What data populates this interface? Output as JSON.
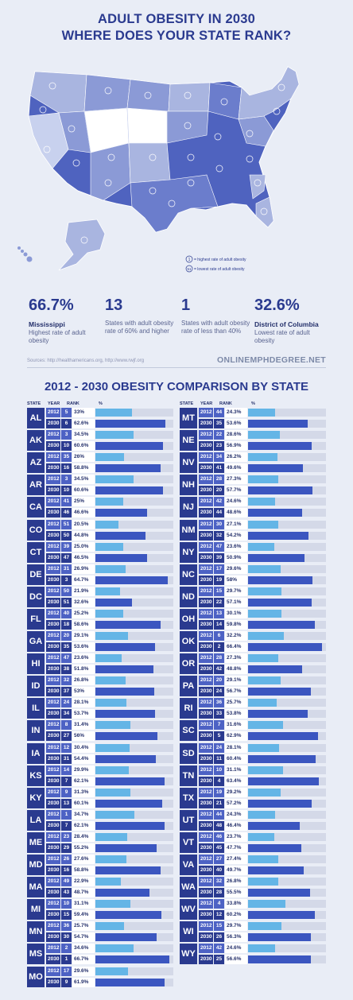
{
  "header": {
    "title_line1": "ADULT OBESITY IN 2030",
    "title_line2": "WHERE DOES YOUR STATE RANK?"
  },
  "map": {
    "legend_1": "= highest rate of adult obesity",
    "legend_51": "= lowest rate of adult obesity",
    "legend_1_num": "1",
    "legend_51_num": "51"
  },
  "stats": [
    {
      "big": "66.7%",
      "bold": "Mississippi",
      "desc": "Highest rate of adult obesity"
    },
    {
      "big": "13",
      "bold": "",
      "desc": "States with adult obesity rate of 60% and higher"
    },
    {
      "big": "1",
      "bold": "",
      "desc": "States with adult obesity rate of less than 40%"
    },
    {
      "big": "32.6%",
      "bold": "District of Columbia",
      "desc": "Lowest rate of adult obesity"
    }
  ],
  "sources": "Sources: http://healthamericans.org, http://www.rwjf.org",
  "site": "ONLINEMPHDEGREE.NET",
  "comparison": {
    "title": "2012 - 2030 OBESITY COMPARISON BY STATE",
    "headers": {
      "state": "STATE",
      "year": "YEAR",
      "rank": "RANK",
      "pct": "%"
    }
  },
  "chart_data": {
    "type": "bar",
    "title": "2012 - 2030 OBESITY COMPARISON BY STATE",
    "series": [
      {
        "name": "2012",
        "values": []
      },
      {
        "name": "2030",
        "values": []
      }
    ],
    "states": [
      {
        "code": "AL",
        "y2012": {
          "year": "2012",
          "rank": "5",
          "pct": "33%",
          "value": 33.0
        },
        "y2030": {
          "year": "2030",
          "rank": "6",
          "pct": "62.6%",
          "value": 62.6
        }
      },
      {
        "code": "AK",
        "y2012": {
          "year": "2012",
          "rank": "3",
          "pct": "34.5%",
          "value": 34.5
        },
        "y2030": {
          "year": "2030",
          "rank": "10",
          "pct": "60.6%",
          "value": 60.6
        }
      },
      {
        "code": "AZ",
        "y2012": {
          "year": "2012",
          "rank": "35",
          "pct": "26%",
          "value": 26.0
        },
        "y2030": {
          "year": "2030",
          "rank": "16",
          "pct": "58.8%",
          "value": 58.8
        }
      },
      {
        "code": "AR",
        "y2012": {
          "year": "2012",
          "rank": "3",
          "pct": "34.5%",
          "value": 34.5
        },
        "y2030": {
          "year": "2030",
          "rank": "10",
          "pct": "60.6%",
          "value": 60.6
        }
      },
      {
        "code": "CA",
        "y2012": {
          "year": "2012",
          "rank": "41",
          "pct": "25%",
          "value": 25.0
        },
        "y2030": {
          "year": "2030",
          "rank": "46",
          "pct": "46.6%",
          "value": 46.6
        }
      },
      {
        "code": "CO",
        "y2012": {
          "year": "2012",
          "rank": "51",
          "pct": "20.5%",
          "value": 20.5
        },
        "y2030": {
          "year": "2030",
          "rank": "50",
          "pct": "44.8%",
          "value": 44.8
        }
      },
      {
        "code": "CT",
        "y2012": {
          "year": "2012",
          "rank": "39",
          "pct": "25.0%",
          "value": 25.0
        },
        "y2030": {
          "year": "2030",
          "rank": "47",
          "pct": "46.5%",
          "value": 46.5
        }
      },
      {
        "code": "DE",
        "y2012": {
          "year": "2012",
          "rank": "31",
          "pct": "26.9%",
          "value": 26.9
        },
        "y2030": {
          "year": "2030",
          "rank": "3",
          "pct": "64.7%",
          "value": 64.7
        }
      },
      {
        "code": "DC",
        "y2012": {
          "year": "2012",
          "rank": "50",
          "pct": "21.9%",
          "value": 21.9
        },
        "y2030": {
          "year": "2030",
          "rank": "51",
          "pct": "32.6%",
          "value": 32.6
        }
      },
      {
        "code": "FL",
        "y2012": {
          "year": "2012",
          "rank": "40",
          "pct": "25.2%",
          "value": 25.2
        },
        "y2030": {
          "year": "2030",
          "rank": "18",
          "pct": "58.6%",
          "value": 58.6
        }
      },
      {
        "code": "GA",
        "y2012": {
          "year": "2012",
          "rank": "20",
          "pct": "29.1%",
          "value": 29.1
        },
        "y2030": {
          "year": "2030",
          "rank": "35",
          "pct": "53.6%",
          "value": 53.6
        }
      },
      {
        "code": "HI",
        "y2012": {
          "year": "2012",
          "rank": "47",
          "pct": "23.6%",
          "value": 23.6
        },
        "y2030": {
          "year": "2030",
          "rank": "38",
          "pct": "51.8%",
          "value": 51.8
        }
      },
      {
        "code": "ID",
        "y2012": {
          "year": "2012",
          "rank": "32",
          "pct": "26.8%",
          "value": 26.8
        },
        "y2030": {
          "year": "2030",
          "rank": "37",
          "pct": "53%",
          "value": 53.0
        }
      },
      {
        "code": "IL",
        "y2012": {
          "year": "2012",
          "rank": "24",
          "pct": "28.1%",
          "value": 28.1
        },
        "y2030": {
          "year": "2030",
          "rank": "34",
          "pct": "53.7%",
          "value": 53.7
        }
      },
      {
        "code": "IN",
        "y2012": {
          "year": "2012",
          "rank": "8",
          "pct": "31.4%",
          "value": 31.4
        },
        "y2030": {
          "year": "2030",
          "rank": "27",
          "pct": "56%",
          "value": 56.0
        }
      },
      {
        "code": "IA",
        "y2012": {
          "year": "2012",
          "rank": "12",
          "pct": "30.4%",
          "value": 30.4
        },
        "y2030": {
          "year": "2030",
          "rank": "31",
          "pct": "54.4%",
          "value": 54.4
        }
      },
      {
        "code": "KS",
        "y2012": {
          "year": "2012",
          "rank": "14",
          "pct": "29.9%",
          "value": 29.9
        },
        "y2030": {
          "year": "2030",
          "rank": "7",
          "pct": "62.1%",
          "value": 62.1
        }
      },
      {
        "code": "KY",
        "y2012": {
          "year": "2012",
          "rank": "9",
          "pct": "31.3%",
          "value": 31.3
        },
        "y2030": {
          "year": "2030",
          "rank": "13",
          "pct": "60.1%",
          "value": 60.1
        }
      },
      {
        "code": "LA",
        "y2012": {
          "year": "2012",
          "rank": "1",
          "pct": "34.7%",
          "value": 34.7
        },
        "y2030": {
          "year": "2030",
          "rank": "7",
          "pct": "62.1%",
          "value": 62.1
        }
      },
      {
        "code": "ME",
        "y2012": {
          "year": "2012",
          "rank": "23",
          "pct": "28.4%",
          "value": 28.4
        },
        "y2030": {
          "year": "2030",
          "rank": "29",
          "pct": "55.2%",
          "value": 55.2
        }
      },
      {
        "code": "MD",
        "y2012": {
          "year": "2012",
          "rank": "26",
          "pct": "27.6%",
          "value": 27.6
        },
        "y2030": {
          "year": "2030",
          "rank": "16",
          "pct": "58.8%",
          "value": 58.8
        }
      },
      {
        "code": "MA",
        "y2012": {
          "year": "2012",
          "rank": "49",
          "pct": "22.9%",
          "value": 22.9
        },
        "y2030": {
          "year": "2030",
          "rank": "43",
          "pct": "48.7%",
          "value": 48.7
        }
      },
      {
        "code": "MI",
        "y2012": {
          "year": "2012",
          "rank": "10",
          "pct": "31.1%",
          "value": 31.1
        },
        "y2030": {
          "year": "2030",
          "rank": "15",
          "pct": "59.4%",
          "value": 59.4
        }
      },
      {
        "code": "MN",
        "y2012": {
          "year": "2012",
          "rank": "36",
          "pct": "25.7%",
          "value": 25.7
        },
        "y2030": {
          "year": "2030",
          "rank": "30",
          "pct": "54.7%",
          "value": 54.7
        }
      },
      {
        "code": "MS",
        "y2012": {
          "year": "2012",
          "rank": "2",
          "pct": "34.6%",
          "value": 34.6
        },
        "y2030": {
          "year": "2030",
          "rank": "1",
          "pct": "66.7%",
          "value": 66.7
        }
      },
      {
        "code": "MO",
        "y2012": {
          "year": "2012",
          "rank": "17",
          "pct": "29.6%",
          "value": 29.6
        },
        "y2030": {
          "year": "2030",
          "rank": "9",
          "pct": "61.9%",
          "value": 61.9
        }
      },
      {
        "code": "MT",
        "y2012": {
          "year": "2012",
          "rank": "44",
          "pct": "24.3%",
          "value": 24.3
        },
        "y2030": {
          "year": "2030",
          "rank": "35",
          "pct": "53.6%",
          "value": 53.6
        }
      },
      {
        "code": "NE",
        "y2012": {
          "year": "2012",
          "rank": "22",
          "pct": "28.6%",
          "value": 28.6
        },
        "y2030": {
          "year": "2030",
          "rank": "23",
          "pct": "56.9%",
          "value": 56.9
        }
      },
      {
        "code": "NV",
        "y2012": {
          "year": "2012",
          "rank": "34",
          "pct": "26.2%",
          "value": 26.2
        },
        "y2030": {
          "year": "2030",
          "rank": "41",
          "pct": "49.6%",
          "value": 49.6
        }
      },
      {
        "code": "NH",
        "y2012": {
          "year": "2012",
          "rank": "28",
          "pct": "27.3%",
          "value": 27.3
        },
        "y2030": {
          "year": "2030",
          "rank": "20",
          "pct": "57.7%",
          "value": 57.7
        }
      },
      {
        "code": "NJ",
        "y2012": {
          "year": "2012",
          "rank": "42",
          "pct": "24.6%",
          "value": 24.6
        },
        "y2030": {
          "year": "2030",
          "rank": "44",
          "pct": "48.6%",
          "value": 48.6
        }
      },
      {
        "code": "NM",
        "y2012": {
          "year": "2012",
          "rank": "30",
          "pct": "27.1%",
          "value": 27.1
        },
        "y2030": {
          "year": "2030",
          "rank": "32",
          "pct": "54.2%",
          "value": 54.2
        }
      },
      {
        "code": "NY",
        "y2012": {
          "year": "2012",
          "rank": "47",
          "pct": "23.6%",
          "value": 23.6
        },
        "y2030": {
          "year": "2030",
          "rank": "39",
          "pct": "50.9%",
          "value": 50.9
        }
      },
      {
        "code": "NC",
        "y2012": {
          "year": "2012",
          "rank": "17",
          "pct": "29.6%",
          "value": 29.6
        },
        "y2030": {
          "year": "2030",
          "rank": "19",
          "pct": "58%",
          "value": 58.0
        }
      },
      {
        "code": "ND",
        "y2012": {
          "year": "2012",
          "rank": "15",
          "pct": "29.7%",
          "value": 29.7
        },
        "y2030": {
          "year": "2030",
          "rank": "22",
          "pct": "57.1%",
          "value": 57.1
        }
      },
      {
        "code": "OH",
        "y2012": {
          "year": "2012",
          "rank": "13",
          "pct": "30.1%",
          "value": 30.1
        },
        "y2030": {
          "year": "2030",
          "rank": "14",
          "pct": "59.8%",
          "value": 59.8
        }
      },
      {
        "code": "OK",
        "y2012": {
          "year": "2012",
          "rank": "6",
          "pct": "32.2%",
          "value": 32.2
        },
        "y2030": {
          "year": "2030",
          "rank": "2",
          "pct": "66.4%",
          "value": 66.4
        }
      },
      {
        "code": "OR",
        "y2012": {
          "year": "2012",
          "rank": "28",
          "pct": "27.3%",
          "value": 27.3
        },
        "y2030": {
          "year": "2030",
          "rank": "42",
          "pct": "48.8%",
          "value": 48.8
        }
      },
      {
        "code": "PA",
        "y2012": {
          "year": "2012",
          "rank": "20",
          "pct": "29.1%",
          "value": 29.1
        },
        "y2030": {
          "year": "2030",
          "rank": "24",
          "pct": "56.7%",
          "value": 56.7
        }
      },
      {
        "code": "RI",
        "y2012": {
          "year": "2012",
          "rank": "36",
          "pct": "25.7%",
          "value": 25.7
        },
        "y2030": {
          "year": "2030",
          "rank": "33",
          "pct": "53.8%",
          "value": 53.8
        }
      },
      {
        "code": "SC",
        "y2012": {
          "year": "2012",
          "rank": "7",
          "pct": "31.6%",
          "value": 31.6
        },
        "y2030": {
          "year": "2030",
          "rank": "5",
          "pct": "62.9%",
          "value": 62.9
        }
      },
      {
        "code": "SD",
        "y2012": {
          "year": "2012",
          "rank": "24",
          "pct": "28.1%",
          "value": 28.1
        },
        "y2030": {
          "year": "2030",
          "rank": "11",
          "pct": "60.4%",
          "value": 60.4
        }
      },
      {
        "code": "TN",
        "y2012": {
          "year": "2012",
          "rank": "10",
          "pct": "31.1%",
          "value": 31.1
        },
        "y2030": {
          "year": "2030",
          "rank": "4",
          "pct": "63.4%",
          "value": 63.4
        }
      },
      {
        "code": "TX",
        "y2012": {
          "year": "2012",
          "rank": "19",
          "pct": "29.2%",
          "value": 29.2
        },
        "y2030": {
          "year": "2030",
          "rank": "21",
          "pct": "57.2%",
          "value": 57.2
        }
      },
      {
        "code": "UT",
        "y2012": {
          "year": "2012",
          "rank": "44",
          "pct": "24.3%",
          "value": 24.3
        },
        "y2030": {
          "year": "2030",
          "rank": "48",
          "pct": "46.4%",
          "value": 46.4
        }
      },
      {
        "code": "VT",
        "y2012": {
          "year": "2012",
          "rank": "46",
          "pct": "23.7%",
          "value": 23.7
        },
        "y2030": {
          "year": "2030",
          "rank": "45",
          "pct": "47.7%",
          "value": 47.7
        }
      },
      {
        "code": "VA",
        "y2012": {
          "year": "2012",
          "rank": "27",
          "pct": "27.4%",
          "value": 27.4
        },
        "y2030": {
          "year": "2030",
          "rank": "40",
          "pct": "49.7%",
          "value": 49.7
        }
      },
      {
        "code": "WA",
        "y2012": {
          "year": "2012",
          "rank": "32",
          "pct": "26.8%",
          "value": 26.8
        },
        "y2030": {
          "year": "2030",
          "rank": "28",
          "pct": "55.5%",
          "value": 55.5
        }
      },
      {
        "code": "WV",
        "y2012": {
          "year": "2012",
          "rank": "4",
          "pct": "33.8%",
          "value": 33.8
        },
        "y2030": {
          "year": "2030",
          "rank": "12",
          "pct": "60.2%",
          "value": 60.2
        }
      },
      {
        "code": "WI",
        "y2012": {
          "year": "2012",
          "rank": "15",
          "pct": "29.7%",
          "value": 29.7
        },
        "y2030": {
          "year": "2030",
          "rank": "26",
          "pct": "56.3%",
          "value": 56.3
        }
      },
      {
        "code": "WY",
        "y2012": {
          "year": "2012",
          "rank": "42",
          "pct": "24.6%",
          "value": 24.6
        },
        "y2030": {
          "year": "2030",
          "rank": "25",
          "pct": "56.6%",
          "value": 56.6
        }
      }
    ],
    "xlim": [
      0,
      70
    ],
    "colors": {
      "y2012": "#64b5e6",
      "y2030": "#3b56c0"
    }
  },
  "colors": {
    "brand": "#2a3a8f",
    "background": "#e9edf6"
  }
}
